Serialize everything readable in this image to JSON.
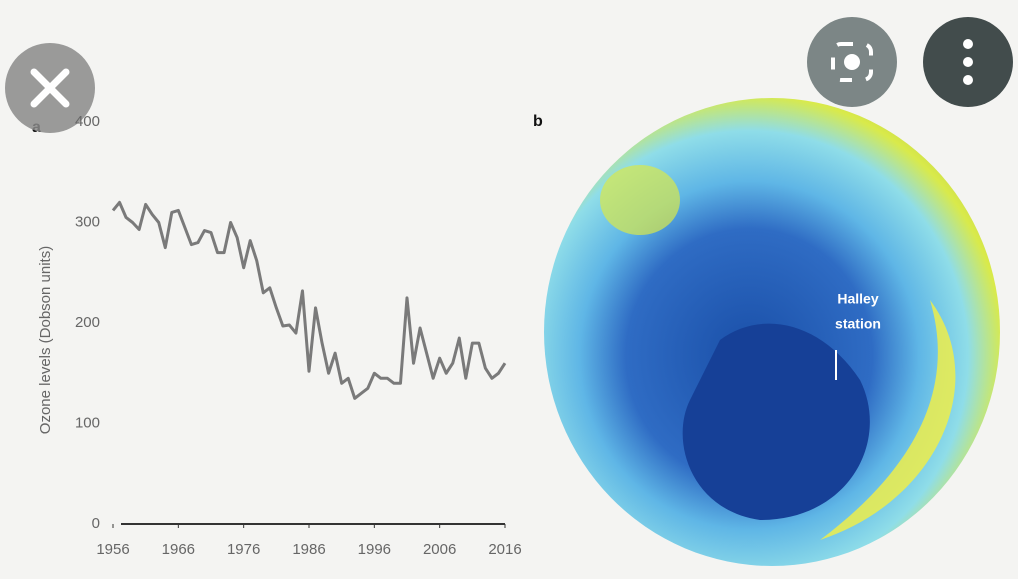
{
  "chart_data": {
    "type": "line",
    "panel_label": "a",
    "y_label": "Ozone levels (Dobson units)",
    "x": [
      1956,
      1957,
      1958,
      1959,
      1960,
      1961,
      1962,
      1963,
      1964,
      1965,
      1966,
      1967,
      1968,
      1969,
      1970,
      1971,
      1972,
      1973,
      1974,
      1975,
      1976,
      1977,
      1978,
      1979,
      1980,
      1981,
      1982,
      1983,
      1984,
      1985,
      1986,
      1987,
      1988,
      1989,
      1990,
      1991,
      1992,
      1993,
      1994,
      1995,
      1996,
      1997,
      1998,
      1999,
      2000,
      2001,
      2002,
      2003,
      2004,
      2005,
      2006,
      2007,
      2008,
      2009,
      2010,
      2011,
      2012,
      2013,
      2014,
      2015,
      2016
    ],
    "values": [
      312,
      320,
      305,
      300,
      293,
      318,
      308,
      300,
      275,
      310,
      312,
      295,
      278,
      280,
      292,
      290,
      270,
      270,
      300,
      285,
      255,
      282,
      262,
      230,
      235,
      215,
      197,
      198,
      190,
      232,
      152,
      215,
      180,
      150,
      170,
      140,
      145,
      125,
      130,
      135,
      150,
      145,
      145,
      140,
      140,
      225,
      160,
      195,
      170,
      145,
      165,
      150,
      160,
      185,
      145,
      180,
      180,
      155,
      145,
      150,
      160
    ],
    "color": "#7a7a7a",
    "xlim": [
      1956,
      2016
    ],
    "xticks": [
      1956,
      1966,
      1976,
      1986,
      1996,
      2006,
      2016
    ],
    "ylim": [
      0,
      400
    ],
    "yticks": [
      0,
      100,
      200,
      300,
      400
    ]
  },
  "panel_b": {
    "label": "b",
    "annotation_line1": "Halley",
    "annotation_line2": "station"
  }
}
